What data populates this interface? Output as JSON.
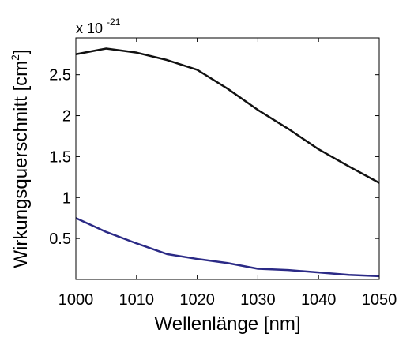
{
  "chart_data": {
    "type": "line",
    "xlabel": "Wellenlänge [nm]",
    "ylabel": {
      "prefix": "Wirkungsquerschnitt [cm",
      "superscript": "2",
      "suffix": "]"
    },
    "y_exponent": {
      "prefix": "x 10",
      "superscript": "-21"
    },
    "xlim": [
      1000,
      1050
    ],
    "ylim": [
      0,
      2.95
    ],
    "x_ticks": [
      1000,
      1010,
      1020,
      1030,
      1040,
      1050
    ],
    "x_tick_labels": [
      "1000",
      "1010",
      "1020",
      "1030",
      "1040",
      "1050"
    ],
    "y_ticks": [
      0.5,
      1,
      1.5,
      2,
      2.5
    ],
    "y_tick_labels": [
      "0.5",
      "1",
      "1.5",
      "2",
      "2.5"
    ],
    "grid": false,
    "x": [
      1000,
      1005,
      1010,
      1015,
      1020,
      1025,
      1030,
      1035,
      1040,
      1045,
      1050
    ],
    "series": [
      {
        "color": "#111111",
        "values": [
          2.75,
          2.82,
          2.77,
          2.68,
          2.56,
          2.33,
          2.07,
          1.84,
          1.59,
          1.38,
          1.18
        ]
      },
      {
        "color": "#2b2a86",
        "values": [
          0.75,
          0.58,
          0.44,
          0.31,
          0.25,
          0.2,
          0.13,
          0.115,
          0.085,
          0.055,
          0.04
        ]
      }
    ]
  }
}
